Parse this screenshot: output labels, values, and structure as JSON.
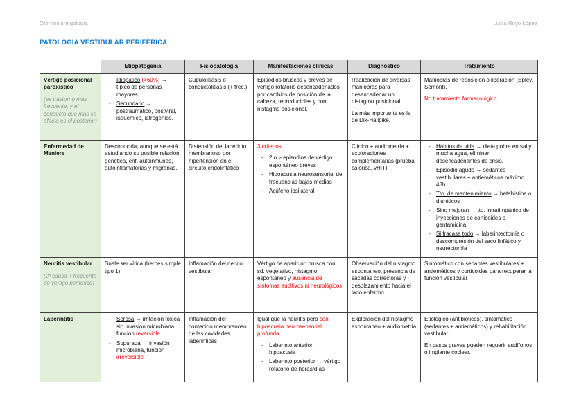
{
  "page": {
    "header_left": "Otorrinolaringología",
    "header_right": "Lucía Royo López",
    "title": "PATOLOGÍA VESTIBULAR PERIFÉRICA"
  },
  "colors": {
    "title_blue": "#0b76cc",
    "red": "#ff0000",
    "header_gray": "#d9d9d9",
    "label_green": "#e2efda",
    "muted_gray": "#8f968f",
    "page_meta_gray": "#a8a8a8"
  },
  "table": {
    "columns": [
      "",
      "Etiopatogenia",
      "Fisiopatología",
      "Manifestaciones clínicas",
      "Diagnóstico",
      "Tratamiento"
    ],
    "column_keys": [
      "entidad",
      "etiopatogenia",
      "fisiopatologia",
      "manifestaciones-clinicas",
      "diagnostico",
      "tratamiento"
    ],
    "rows": [
      {
        "key": "vertigo-posicional-paroxistico",
        "cells": [
          [
            {
              "p": [
                {
                  "t": "Vértigo posicional paroxístico",
                  "c": "b"
                }
              ]
            },
            {
              "p": [
                {
                  "t": "(es trastorno más frecuente, y el conducto que más se afecta es el posterior)",
                  "c": "i muted"
                }
              ],
              "pc": "note"
            }
          ],
          [
            {
              "ul": [
                [
                  {
                    "t": "Idiopático",
                    "c": "u"
                  },
                  {
                    "t": " "
                  },
                  {
                    "t": "(>60%)",
                    "c": "red"
                  },
                  {
                    "t": " → típico de personas mayores"
                  }
                ],
                [
                  {
                    "t": "Secundario",
                    "c": "u"
                  },
                  {
                    "t": " → postraumático, postviral, isquémico, iatrogénico."
                  }
                ]
              ]
            }
          ],
          [
            {
              "p": [
                {
                  "t": "Cupulolitiasis o conductolitiasis (+ frec.)"
                }
              ]
            }
          ],
          [
            {
              "p": [
                {
                  "t": "Episodios bruscos y breves de vértigo rotatorio desencadenados por cambios de posición de la cabeza, reproducibles y con nistagmo posicional."
                }
              ]
            }
          ],
          [
            {
              "p": [
                {
                  "t": "Realización de diversas maniobras para desencadenar un nistagmo posicional."
                }
              ]
            },
            {
              "p": [
                {
                  "t": "La más importante es la de Dix-Hallpike."
                }
              ]
            }
          ],
          [
            {
              "p": [
                {
                  "t": "Maniobras de reposición o liberación (Epley, Semont)."
                }
              ]
            },
            {
              "p": [
                {
                  "t": "No tratamiento farmacológico",
                  "c": "red"
                }
              ]
            }
          ]
        ]
      },
      {
        "key": "enfermedad-de-meniere",
        "cells": [
          [
            {
              "p": [
                {
                  "t": "Enfermedad de Meniere",
                  "c": "b"
                }
              ]
            }
          ],
          [
            {
              "p": [
                {
                  "t": "Desconocida, aunque se está estudiando su posible relación genética, enf. autoinmunes, autoinflamatorias y migrañas."
                }
              ]
            }
          ],
          [
            {
              "p": [
                {
                  "t": "Distensión del laberinto membranoso por hipertensión en el circuito endolinfático"
                }
              ]
            }
          ],
          [
            {
              "p": [
                {
                  "t": "3 criterios:",
                  "c": "red"
                }
              ]
            },
            {
              "ul": [
                [
                  {
                    "t": "2 o > episodios de vértigo espontáneo breves"
                  }
                ],
                [
                  {
                    "t": "Hipoacusia neurosensorial de frecuencias bajas-medias"
                  }
                ],
                [
                  {
                    "t": "Acúfeno ipsilateral"
                  }
                ]
              ]
            }
          ],
          [
            {
              "p": [
                {
                  "t": "Clínico + audiometría + exploraciones complementarias (prueba calórica, vHIT)"
                }
              ]
            }
          ],
          [
            {
              "ul": [
                [
                  {
                    "t": "Hábitos de vida",
                    "c": "u"
                  },
                  {
                    "t": " → dieta pobre en sal y mucha agua, eliminar desencadenantes de crisis."
                  }
                ],
                [
                  {
                    "t": "Episodio agudo",
                    "c": "u"
                  },
                  {
                    "t": " → sedantes vestibulares + antieméticos máximo 48h"
                  }
                ],
                [
                  {
                    "t": "Tto. de mantenimiento",
                    "c": "u"
                  },
                  {
                    "t": " → betahistina o diuréticos"
                  }
                ],
                [
                  {
                    "t": "Sino mejoran",
                    "c": "u"
                  },
                  {
                    "t": " → tto. intratimpánico de inyecciones de corticoides o gentamicina"
                  }
                ],
                [
                  {
                    "t": "Si fracasa todo",
                    "c": "u"
                  },
                  {
                    "t": " → laberintectomía o descompresión del saco linfático y neurectomía"
                  }
                ]
              ]
            }
          ]
        ]
      },
      {
        "key": "neuritis-vestibular",
        "cells": [
          [
            {
              "p": [
                {
                  "t": "Neuritis vestibular",
                  "c": "b"
                }
              ]
            },
            {
              "p": [
                {
                  "t": "(2ª causa + frecuente de vértigo periférico)",
                  "c": "i muted"
                }
              ],
              "pc": "note"
            }
          ],
          [
            {
              "p": [
                {
                  "t": "Suele ser vírica (herpes simple tipo 1)"
                }
              ]
            }
          ],
          [
            {
              "p": [
                {
                  "t": "Inflamación del nervio vestibular"
                }
              ]
            }
          ],
          [
            {
              "p": [
                {
                  "t": "Vértigo de aparición brusca con sd. vegetativo, nistagmo espontáneo y "
                },
                {
                  "t": "ausencia de síntomas auditivos ni neurológicos",
                  "c": "red"
                },
                {
                  "t": "."
                }
              ]
            }
          ],
          [
            {
              "p": [
                {
                  "t": "Observación del nistagmo espontáneo, presencia de sacadas correctoras y desplazamiento hacia el lado enfermo"
                }
              ]
            }
          ],
          [
            {
              "p": [
                {
                  "t": "Sintomático con sedantes vestibulares + antieméticos y corticoides para recuperar la función vestibular"
                }
              ]
            }
          ]
        ]
      },
      {
        "key": "laberintitis",
        "cells": [
          [
            {
              "p": [
                {
                  "t": "Laberintitis",
                  "c": "b"
                }
              ]
            }
          ],
          [
            {
              "ul": [
                [
                  {
                    "t": "Serosa",
                    "c": "u"
                  },
                  {
                    "t": " → irritación tóxica sin invasión microbiana, función "
                  },
                  {
                    "t": "reversible",
                    "c": "red"
                  }
                ],
                [
                  {
                    "t": "Supurada → invasión "
                  },
                  {
                    "t": "microbiana",
                    "c": "u"
                  },
                  {
                    "t": ", función "
                  },
                  {
                    "t": "irreversible",
                    "c": "red"
                  }
                ]
              ]
            }
          ],
          [
            {
              "p": [
                {
                  "t": "Inflamación del contenido membranoso de las cavidades laberínticas"
                }
              ]
            }
          ],
          [
            {
              "p": [
                {
                  "t": "Igual que la neuritis pero "
                },
                {
                  "t": "con hipoacusia neurosensorial profunda",
                  "c": "red"
                }
              ]
            },
            {
              "ul": [
                [
                  {
                    "t": "Laberinto anterior → hipoacusia"
                  }
                ],
                [
                  {
                    "t": "Laberinto posterior → vértigo rotatorio de horas/días"
                  }
                ]
              ]
            }
          ],
          [
            {
              "p": [
                {
                  "t": "Exploración del nistagmo espontáneo + audiometría"
                }
              ]
            }
          ],
          [
            {
              "p": [
                {
                  "t": "Etiológico (antibióticos), sintomático (sedantes + antieméticos) y rehabilitación vestibular."
                }
              ]
            },
            {
              "p": [
                {
                  "t": "En casos graves pueden requerir audífonos o implante coclear."
                }
              ]
            }
          ]
        ]
      }
    ]
  }
}
